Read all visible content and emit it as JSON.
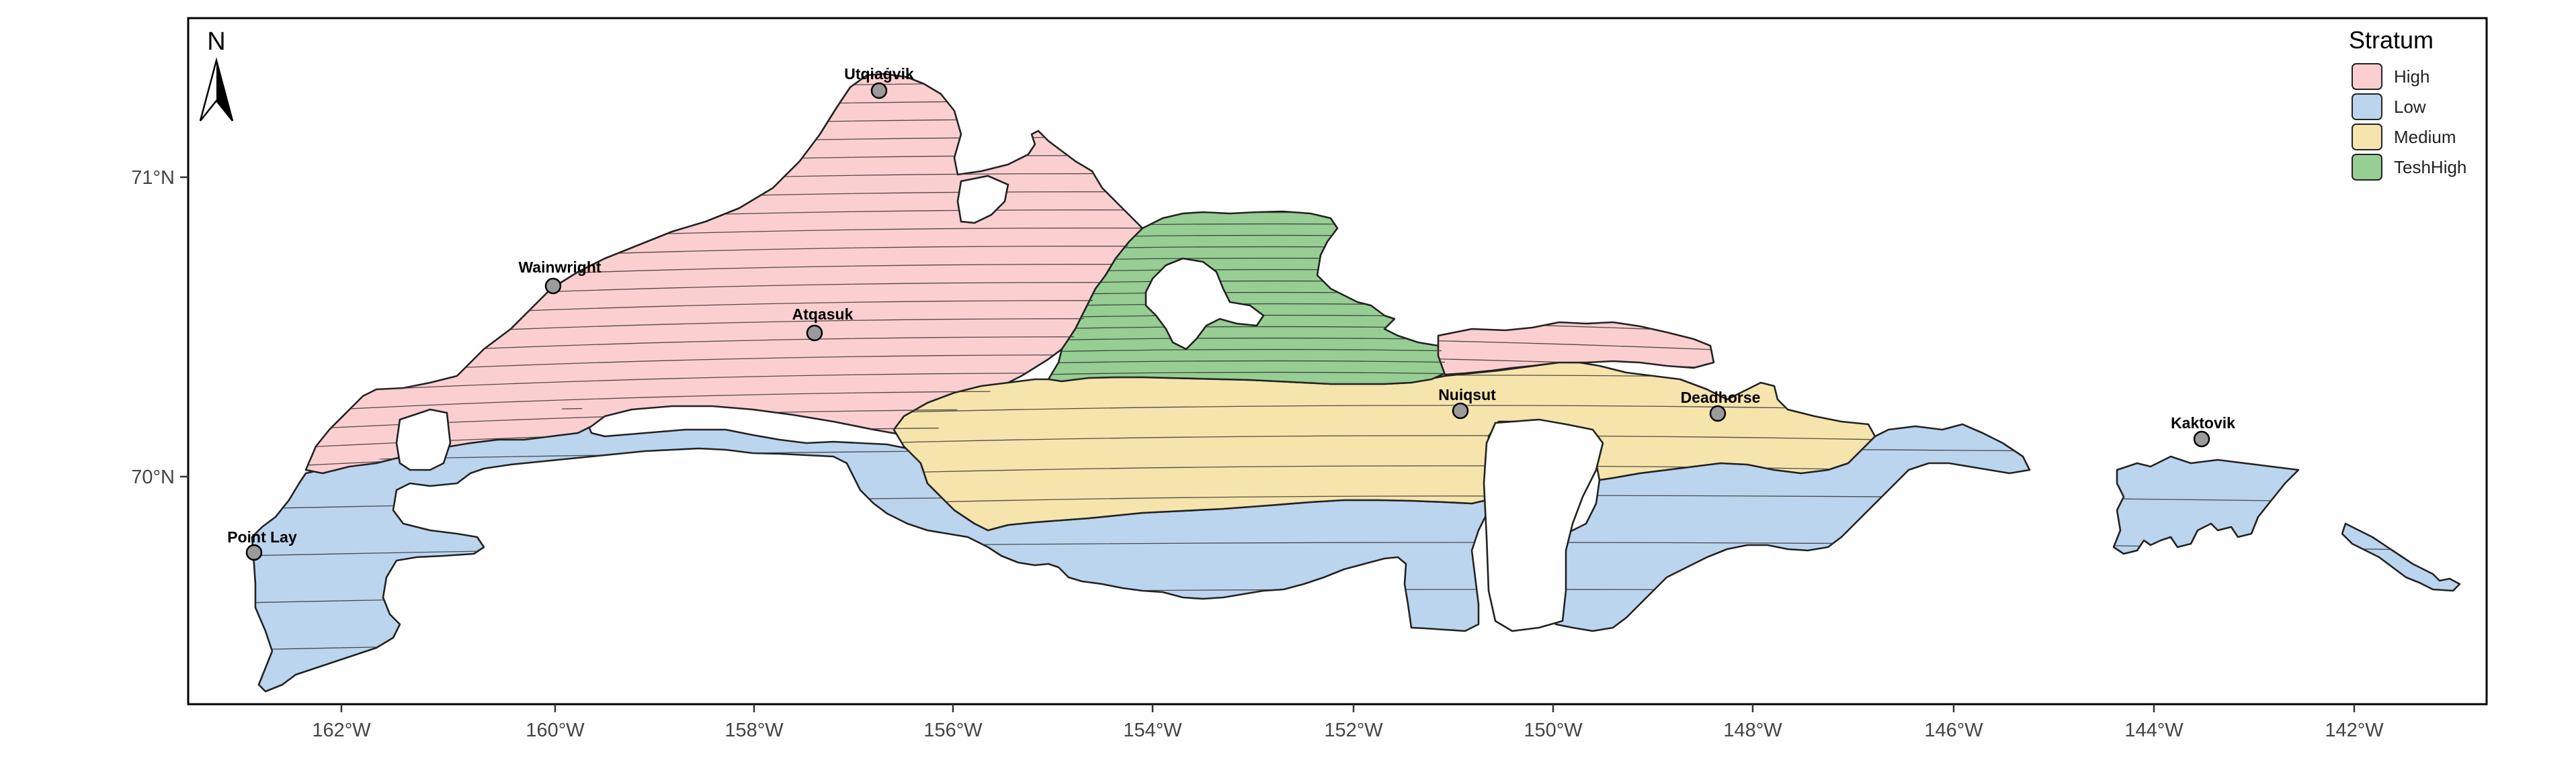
{
  "map": {
    "x_ticks": [
      "162°W",
      "160°W",
      "158°W",
      "156°W",
      "154°W",
      "152°W",
      "150°W",
      "148°W",
      "146°W",
      "144°W",
      "142°W"
    ],
    "y_ticks": [
      "71°N",
      "70°N"
    ],
    "north_arrow_label": "N",
    "towns": [
      {
        "name": "Utqiaġvik"
      },
      {
        "name": "Wainwright"
      },
      {
        "name": "Atqasuk"
      },
      {
        "name": "Point Lay"
      },
      {
        "name": "Nuiqsut"
      },
      {
        "name": "Deadhorse"
      },
      {
        "name": "Kaktovik"
      }
    ]
  },
  "legend": {
    "title": "Stratum",
    "items": [
      {
        "label": "High",
        "color": "#fbcfd0"
      },
      {
        "label": "Low",
        "color": "#bcd5ee"
      },
      {
        "label": "Medium",
        "color": "#f6e4ad"
      },
      {
        "label": "TeshHigh",
        "color": "#96ce94"
      }
    ]
  }
}
